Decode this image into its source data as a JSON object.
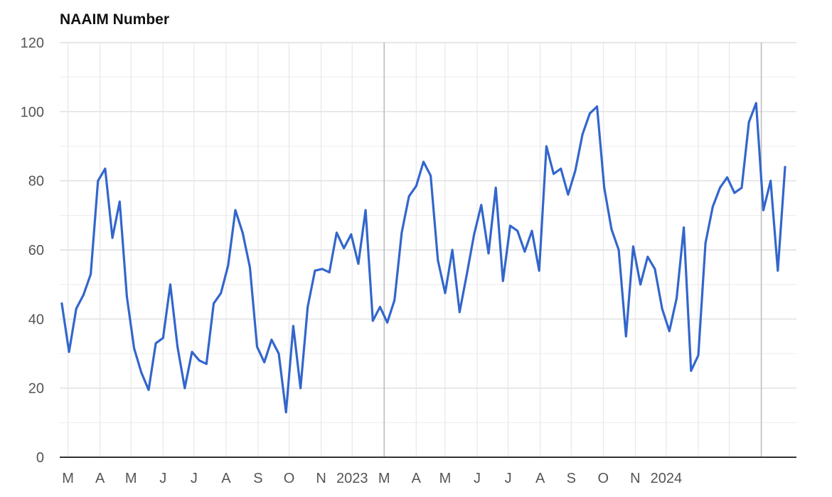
{
  "chart_data": {
    "type": "line",
    "title": "NAAIM Number",
    "xlabel": "",
    "ylabel": "",
    "ylim": [
      0,
      120
    ],
    "yticks": [
      0,
      20,
      40,
      60,
      80,
      100,
      120
    ],
    "x_tick_labels": [
      "M",
      "A",
      "M",
      "J",
      "J",
      "A",
      "S",
      "O",
      "N",
      "2023",
      "M",
      "A",
      "M",
      "J",
      "J",
      "A",
      "S",
      "O",
      "N",
      "2024"
    ],
    "grid": true,
    "legend": "none",
    "series": [
      {
        "color": "#3366cc",
        "x": [
          "2022-02-23",
          "2022-03-02",
          "2022-03-09",
          "2022-03-16",
          "2022-03-23",
          "2022-03-30",
          "2022-04-06",
          "2022-04-13",
          "2022-04-20",
          "2022-04-27",
          "2022-05-04",
          "2022-05-11",
          "2022-05-18",
          "2022-05-25",
          "2022-06-01",
          "2022-06-08",
          "2022-06-15",
          "2022-06-22",
          "2022-06-29",
          "2022-07-06",
          "2022-07-13",
          "2022-07-20",
          "2022-07-27",
          "2022-08-03",
          "2022-08-10",
          "2022-08-17",
          "2022-08-24",
          "2022-08-31",
          "2022-09-07",
          "2022-09-14",
          "2022-09-21",
          "2022-09-28",
          "2022-10-05",
          "2022-10-12",
          "2022-10-19",
          "2022-10-26",
          "2022-11-02",
          "2022-11-09",
          "2022-11-16",
          "2022-11-23",
          "2022-11-30",
          "2022-12-07",
          "2022-12-14",
          "2022-12-21",
          "2022-12-28",
          "2023-01-04",
          "2023-01-11",
          "2023-01-18",
          "2023-01-25",
          "2023-02-01",
          "2023-02-08",
          "2023-02-15",
          "2023-02-22",
          "2023-03-01",
          "2023-03-08",
          "2023-03-15",
          "2023-03-22",
          "2023-03-29",
          "2023-04-05",
          "2023-04-12",
          "2023-04-19",
          "2023-04-26",
          "2023-05-03",
          "2023-05-10",
          "2023-05-17",
          "2023-05-24",
          "2023-05-31",
          "2023-06-07",
          "2023-06-14",
          "2023-06-21",
          "2023-06-28",
          "2023-07-05",
          "2023-07-12",
          "2023-07-19",
          "2023-07-26",
          "2023-08-02",
          "2023-08-09",
          "2023-08-16",
          "2023-08-23",
          "2023-08-30",
          "2023-09-06",
          "2023-09-13",
          "2023-09-20",
          "2023-09-27",
          "2023-10-04",
          "2023-10-11",
          "2023-10-18",
          "2023-10-25",
          "2023-11-01",
          "2023-11-08",
          "2023-11-15",
          "2023-11-22",
          "2023-11-29",
          "2023-12-06",
          "2023-12-13",
          "2023-12-20",
          "2023-12-27",
          "2024-01-03",
          "2024-01-10",
          "2024-01-17",
          "2024-01-24"
        ],
        "y": [
          44.5,
          30.5,
          43,
          47,
          53,
          80,
          83.5,
          63.5,
          74,
          46.5,
          31.5,
          24.5,
          19.5,
          33,
          34.5,
          50,
          32,
          20,
          30.5,
          28,
          27,
          44.5,
          47.5,
          55.5,
          71.5,
          65,
          55,
          32,
          27.5,
          34,
          30,
          13,
          38,
          20,
          43.5,
          54,
          54.5,
          53.5,
          65,
          60.5,
          64.5,
          56,
          71.5,
          39.5,
          43.5,
          39,
          45.5,
          65,
          75.5,
          78.5,
          85.5,
          81.5,
          57,
          47.5,
          60,
          42,
          53,
          64.5,
          73,
          59,
          78,
          51,
          67,
          65.5,
          59.5,
          65.5,
          54,
          90,
          82,
          83.5,
          76,
          83,
          93.5,
          99.5,
          101.5,
          78,
          66,
          60,
          35,
          61,
          50,
          58,
          54.5,
          43,
          36.5,
          46,
          66.5,
          25,
          29.5,
          62,
          72.5,
          78,
          81,
          76.5,
          78,
          97,
          102.5,
          71.5,
          80,
          54,
          84
        ]
      }
    ]
  }
}
